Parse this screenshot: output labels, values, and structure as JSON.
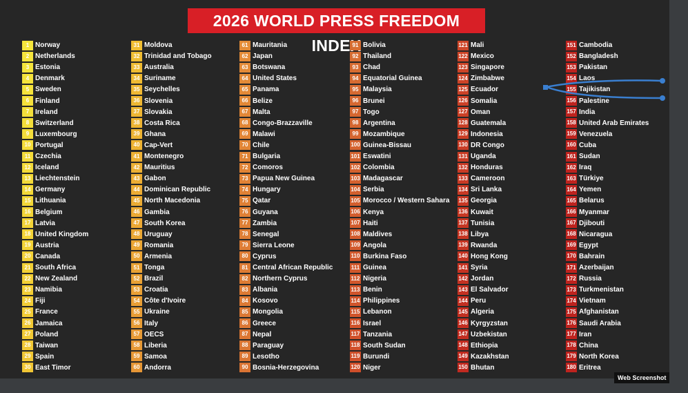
{
  "title": "2026 WORLD PRESS FREEDOM INDEX",
  "footer": "Web Screenshot",
  "columns": [
    [
      {
        "rank": 1,
        "country": "Norway"
      },
      {
        "rank": 2,
        "country": "Netherlands"
      },
      {
        "rank": 3,
        "country": "Estonia"
      },
      {
        "rank": 4,
        "country": "Denmark"
      },
      {
        "rank": 5,
        "country": "Sweden"
      },
      {
        "rank": 6,
        "country": "Finland"
      },
      {
        "rank": 7,
        "country": "Ireland"
      },
      {
        "rank": 8,
        "country": "Switzerland"
      },
      {
        "rank": 9,
        "country": "Luxembourg"
      },
      {
        "rank": 10,
        "country": "Portugal"
      },
      {
        "rank": 11,
        "country": "Czechia"
      },
      {
        "rank": 12,
        "country": "Iceland"
      },
      {
        "rank": 13,
        "country": "Liechtenstein"
      },
      {
        "rank": 14,
        "country": "Germany"
      },
      {
        "rank": 15,
        "country": "Lithuania"
      },
      {
        "rank": 16,
        "country": "Belgium"
      },
      {
        "rank": 17,
        "country": "Latvia"
      },
      {
        "rank": 18,
        "country": "United Kingdom"
      },
      {
        "rank": 19,
        "country": "Austria"
      },
      {
        "rank": 20,
        "country": "Canada"
      },
      {
        "rank": 21,
        "country": "South Africa"
      },
      {
        "rank": 22,
        "country": "New Zealand"
      },
      {
        "rank": 23,
        "country": "Namibia"
      },
      {
        "rank": 24,
        "country": "Fiji"
      },
      {
        "rank": 25,
        "country": "France"
      },
      {
        "rank": 26,
        "country": "Jamaica"
      },
      {
        "rank": 27,
        "country": "Poland"
      },
      {
        "rank": 28,
        "country": "Taiwan"
      },
      {
        "rank": 29,
        "country": "Spain"
      },
      {
        "rank": 30,
        "country": "East Timor"
      }
    ],
    [
      {
        "rank": 31,
        "country": "Moldova"
      },
      {
        "rank": 32,
        "country": "Trinidad and Tobago"
      },
      {
        "rank": 33,
        "country": "Australia"
      },
      {
        "rank": 34,
        "country": "Suriname"
      },
      {
        "rank": 35,
        "country": "Seychelles"
      },
      {
        "rank": 36,
        "country": "Slovenia"
      },
      {
        "rank": 37,
        "country": "Slovakia"
      },
      {
        "rank": 38,
        "country": "Costa Rica"
      },
      {
        "rank": 39,
        "country": "Ghana"
      },
      {
        "rank": 40,
        "country": "Cap-Vert"
      },
      {
        "rank": 41,
        "country": "Montenegro"
      },
      {
        "rank": 42,
        "country": "Mauritius"
      },
      {
        "rank": 43,
        "country": "Gabon"
      },
      {
        "rank": 44,
        "country": "Dominican Republic"
      },
      {
        "rank": 45,
        "country": "North Macedonia"
      },
      {
        "rank": 46,
        "country": "Gambia"
      },
      {
        "rank": 47,
        "country": "South Korea"
      },
      {
        "rank": 48,
        "country": "Uruguay"
      },
      {
        "rank": 49,
        "country": "Romania"
      },
      {
        "rank": 50,
        "country": "Armenia"
      },
      {
        "rank": 51,
        "country": "Tonga"
      },
      {
        "rank": 52,
        "country": "Brazil"
      },
      {
        "rank": 53,
        "country": "Croatia"
      },
      {
        "rank": 54,
        "country": "Côte d'Ivoire"
      },
      {
        "rank": 55,
        "country": "Ukraine"
      },
      {
        "rank": 56,
        "country": "Italy"
      },
      {
        "rank": 57,
        "country": "OECS"
      },
      {
        "rank": 58,
        "country": "Liberia"
      },
      {
        "rank": 59,
        "country": "Samoa"
      },
      {
        "rank": 60,
        "country": "Andorra"
      }
    ],
    [
      {
        "rank": 61,
        "country": "Mauritania"
      },
      {
        "rank": 62,
        "country": "Japan"
      },
      {
        "rank": 63,
        "country": "Botswana"
      },
      {
        "rank": 64,
        "country": "United States"
      },
      {
        "rank": 65,
        "country": "Panama"
      },
      {
        "rank": 66,
        "country": "Belize"
      },
      {
        "rank": 67,
        "country": "Malta"
      },
      {
        "rank": 68,
        "country": "Congo-Brazzaville"
      },
      {
        "rank": 69,
        "country": "Malawi"
      },
      {
        "rank": 70,
        "country": "Chile"
      },
      {
        "rank": 71,
        "country": "Bulgaria"
      },
      {
        "rank": 72,
        "country": "Comoros"
      },
      {
        "rank": 73,
        "country": "Papua New Guinea"
      },
      {
        "rank": 74,
        "country": "Hungary"
      },
      {
        "rank": 75,
        "country": "Qatar"
      },
      {
        "rank": 76,
        "country": "Guyana"
      },
      {
        "rank": 77,
        "country": "Zambia"
      },
      {
        "rank": 78,
        "country": "Senegal"
      },
      {
        "rank": 79,
        "country": "Sierra Leone"
      },
      {
        "rank": 80,
        "country": "Cyprus"
      },
      {
        "rank": 81,
        "country": "Central African Republic"
      },
      {
        "rank": 82,
        "country": "Northern Cyprus"
      },
      {
        "rank": 83,
        "country": "Albania"
      },
      {
        "rank": 84,
        "country": "Kosovo"
      },
      {
        "rank": 85,
        "country": "Mongolia"
      },
      {
        "rank": 86,
        "country": "Greece"
      },
      {
        "rank": 87,
        "country": "Nepal"
      },
      {
        "rank": 88,
        "country": "Paraguay"
      },
      {
        "rank": 89,
        "country": "Lesotho"
      },
      {
        "rank": 90,
        "country": "Bosnia-Herzegovina"
      }
    ],
    [
      {
        "rank": 91,
        "country": "Bolivia"
      },
      {
        "rank": 92,
        "country": "Thailand"
      },
      {
        "rank": 93,
        "country": "Chad"
      },
      {
        "rank": 94,
        "country": "Equatorial Guinea"
      },
      {
        "rank": 95,
        "country": "Malaysia"
      },
      {
        "rank": 96,
        "country": "Brunei"
      },
      {
        "rank": 97,
        "country": "Togo"
      },
      {
        "rank": 98,
        "country": "Argentina"
      },
      {
        "rank": 99,
        "country": "Mozambique"
      },
      {
        "rank": 100,
        "country": "Guinea-Bissau"
      },
      {
        "rank": 101,
        "country": "Eswatini"
      },
      {
        "rank": 102,
        "country": "Colombia"
      },
      {
        "rank": 103,
        "country": "Madagascar"
      },
      {
        "rank": 104,
        "country": "Serbia"
      },
      {
        "rank": 105,
        "country": "Morocco / Western Sahara"
      },
      {
        "rank": 106,
        "country": "Kenya"
      },
      {
        "rank": 107,
        "country": "Haiti"
      },
      {
        "rank": 108,
        "country": "Maldives"
      },
      {
        "rank": 109,
        "country": "Angola"
      },
      {
        "rank": 110,
        "country": "Burkina Faso"
      },
      {
        "rank": 111,
        "country": "Guinea"
      },
      {
        "rank": 112,
        "country": "Nigeria"
      },
      {
        "rank": 113,
        "country": "Benin"
      },
      {
        "rank": 114,
        "country": "Philippines"
      },
      {
        "rank": 115,
        "country": "Lebanon"
      },
      {
        "rank": 116,
        "country": "Israel"
      },
      {
        "rank": 117,
        "country": "Tanzania"
      },
      {
        "rank": 118,
        "country": "South Sudan"
      },
      {
        "rank": 119,
        "country": "Burundi"
      },
      {
        "rank": 120,
        "country": "Niger"
      }
    ],
    [
      {
        "rank": 121,
        "country": "Mali"
      },
      {
        "rank": 122,
        "country": "Mexico"
      },
      {
        "rank": 123,
        "country": "Singapore"
      },
      {
        "rank": 124,
        "country": "Zimbabwe"
      },
      {
        "rank": 125,
        "country": "Ecuador"
      },
      {
        "rank": 126,
        "country": "Somalia"
      },
      {
        "rank": 127,
        "country": "Oman"
      },
      {
        "rank": 128,
        "country": "Guatemala"
      },
      {
        "rank": 129,
        "country": "Indonesia"
      },
      {
        "rank": 130,
        "country": "DR Congo"
      },
      {
        "rank": 131,
        "country": "Uganda"
      },
      {
        "rank": 132,
        "country": "Honduras"
      },
      {
        "rank": 133,
        "country": "Cameroon"
      },
      {
        "rank": 134,
        "country": "Sri Lanka"
      },
      {
        "rank": 135,
        "country": "Georgia"
      },
      {
        "rank": 136,
        "country": "Kuwait"
      },
      {
        "rank": 137,
        "country": "Tunisia"
      },
      {
        "rank": 138,
        "country": "Libya"
      },
      {
        "rank": 139,
        "country": "Rwanda"
      },
      {
        "rank": 140,
        "country": "Hong Kong"
      },
      {
        "rank": 141,
        "country": "Syria"
      },
      {
        "rank": 142,
        "country": "Jordan"
      },
      {
        "rank": 143,
        "country": "El Salvador"
      },
      {
        "rank": 144,
        "country": "Peru"
      },
      {
        "rank": 145,
        "country": "Algeria"
      },
      {
        "rank": 146,
        "country": "Kyrgyzstan"
      },
      {
        "rank": 147,
        "country": "Uzbekistan"
      },
      {
        "rank": 148,
        "country": "Ethiopia"
      },
      {
        "rank": 149,
        "country": "Kazakhstan"
      },
      {
        "rank": 150,
        "country": "Bhutan"
      }
    ],
    [
      {
        "rank": 151,
        "country": "Cambodia"
      },
      {
        "rank": 152,
        "country": "Bangladesh"
      },
      {
        "rank": 153,
        "country": "Pakistan"
      },
      {
        "rank": 154,
        "country": "Laos"
      },
      {
        "rank": 155,
        "country": "Tajikistan"
      },
      {
        "rank": 156,
        "country": "Palestine"
      },
      {
        "rank": 157,
        "country": "India"
      },
      {
        "rank": 158,
        "country": "United Arab Emirates"
      },
      {
        "rank": 159,
        "country": "Venezuela"
      },
      {
        "rank": 160,
        "country": "Cuba"
      },
      {
        "rank": 161,
        "country": "Sudan"
      },
      {
        "rank": 162,
        "country": "Iraq"
      },
      {
        "rank": 163,
        "country": "Türkiye"
      },
      {
        "rank": 164,
        "country": "Yemen"
      },
      {
        "rank": 165,
        "country": "Belarus"
      },
      {
        "rank": 166,
        "country": "Myanmar"
      },
      {
        "rank": 167,
        "country": "Djibouti"
      },
      {
        "rank": 168,
        "country": "Nicaragua"
      },
      {
        "rank": 169,
        "country": "Egypt"
      },
      {
        "rank": 170,
        "country": "Bahrain"
      },
      {
        "rank": 171,
        "country": "Azerbaijan"
      },
      {
        "rank": 172,
        "country": "Russia"
      },
      {
        "rank": 173,
        "country": "Turkmenistan"
      },
      {
        "rank": 174,
        "country": "Vietnam"
      },
      {
        "rank": 175,
        "country": "Afghanistan"
      },
      {
        "rank": 176,
        "country": "Saudi Arabia"
      },
      {
        "rank": 177,
        "country": "Iran"
      },
      {
        "rank": 178,
        "country": "China"
      },
      {
        "rank": 179,
        "country": "North Korea"
      },
      {
        "rank": 180,
        "country": "Eritrea"
      }
    ]
  ]
}
